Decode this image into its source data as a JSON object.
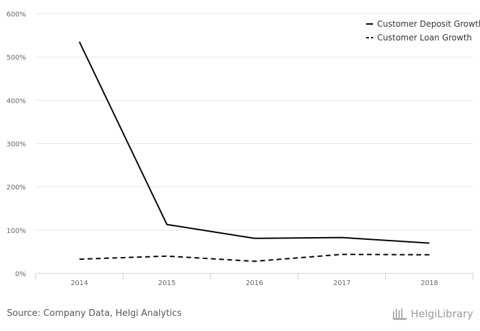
{
  "chart_data": {
    "type": "line",
    "categories": [
      "2014",
      "2015",
      "2016",
      "2017",
      "2018"
    ],
    "series": [
      {
        "name": "Customer Deposit Growth",
        "values": [
          535,
          113,
          81,
          83,
          70
        ],
        "dash": "solid",
        "color": "#000000"
      },
      {
        "name": "Customer Loan Growth",
        "values": [
          33,
          40,
          28,
          44,
          43
        ],
        "dash": "dashed",
        "color": "#000000"
      }
    ],
    "yticks": [
      "0%",
      "100%",
      "200%",
      "300%",
      "400%",
      "500%",
      "600%"
    ],
    "ylim": [
      0,
      600
    ],
    "grid": true,
    "legend_position": "top-right",
    "colors": {
      "grid": "#e6e6e6",
      "axis": "#cccccc",
      "text": "#666666"
    }
  },
  "footer": {
    "source": "Source: Company Data, Helgi Analytics",
    "logo_text": "HelgiLibrary",
    "logo_icon": "helgi-library-icon"
  }
}
